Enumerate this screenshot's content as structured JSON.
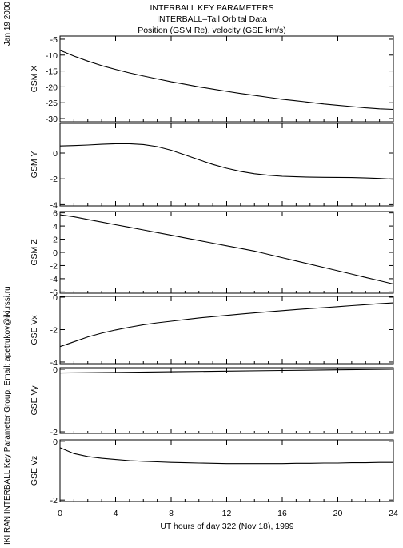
{
  "header": {
    "line1": "INTERBALL KEY PARAMETERS",
    "line2": "INTERBALL–Tail Orbital Data",
    "line3": "Position (GSM Re), velocity (GSE km/s)"
  },
  "side_date": "Jan 19 2000",
  "side_credit": "IKI RAN INTERBALL Key Parameter Group, Email: apetrukov@iki.rssi.ru",
  "chart_data": {
    "type": "line",
    "xlabel": "UT hours of day 322 (Nov 18), 1999",
    "x_ticks": [
      0,
      4,
      8,
      12,
      16,
      20,
      24
    ],
    "xlim": [
      0,
      24
    ],
    "panels": [
      {
        "ylabel": "GSM X",
        "ylim": [
          -31,
          -4
        ],
        "y_ticks": [
          -5,
          -10,
          -15,
          -20,
          -25,
          -30
        ],
        "x": [
          0,
          1,
          2,
          3,
          4,
          5,
          6,
          7,
          8,
          9,
          10,
          11,
          12,
          13,
          14,
          15,
          16,
          17,
          18,
          19,
          20,
          21,
          22,
          23,
          24
        ],
        "y": [
          -8.5,
          -10.3,
          -11.9,
          -13.3,
          -14.5,
          -15.6,
          -16.6,
          -17.5,
          -18.4,
          -19.2,
          -20.0,
          -20.7,
          -21.4,
          -22.1,
          -22.7,
          -23.3,
          -23.9,
          -24.4,
          -24.9,
          -25.4,
          -25.8,
          -26.2,
          -26.6,
          -26.9,
          -27.1
        ]
      },
      {
        "ylabel": "GSM Y",
        "ylim": [
          -4.1,
          2.3
        ],
        "y_ticks": [
          0,
          -2,
          -4
        ],
        "x": [
          0,
          1,
          2,
          3,
          4,
          5,
          6,
          7,
          8,
          9,
          10,
          11,
          12,
          13,
          14,
          15,
          16,
          17,
          18,
          19,
          20,
          21,
          22,
          23,
          24
        ],
        "y": [
          0.55,
          0.58,
          0.62,
          0.68,
          0.72,
          0.72,
          0.66,
          0.5,
          0.22,
          -0.15,
          -0.52,
          -0.88,
          -1.18,
          -1.42,
          -1.6,
          -1.72,
          -1.8,
          -1.84,
          -1.87,
          -1.88,
          -1.89,
          -1.9,
          -1.93,
          -1.97,
          -2.03
        ]
      },
      {
        "ylabel": "GSM Z",
        "ylim": [
          -6.2,
          6.2
        ],
        "y_ticks": [
          6,
          4,
          2,
          0,
          -2,
          -4,
          -6
        ],
        "x": [
          0,
          1,
          2,
          3,
          4,
          5,
          6,
          7,
          8,
          9,
          10,
          11,
          12,
          13,
          14,
          15,
          16,
          17,
          18,
          19,
          20,
          21,
          22,
          23,
          24
        ],
        "y": [
          5.7,
          5.4,
          5.0,
          4.6,
          4.2,
          3.8,
          3.4,
          3.0,
          2.6,
          2.2,
          1.8,
          1.4,
          1.0,
          0.6,
          0.2,
          -0.3,
          -0.8,
          -1.3,
          -1.8,
          -2.3,
          -2.8,
          -3.3,
          -3.8,
          -4.3,
          -4.8
        ]
      },
      {
        "ylabel": "GSE Vx",
        "ylim": [
          -4.1,
          0.05
        ],
        "y_ticks": [
          0,
          -2,
          -4
        ],
        "x": [
          0,
          1,
          2,
          3,
          4,
          5,
          6,
          7,
          8,
          9,
          10,
          11,
          12,
          13,
          14,
          15,
          16,
          17,
          18,
          19,
          20,
          21,
          22,
          23,
          24
        ],
        "y": [
          -3.05,
          -2.75,
          -2.45,
          -2.22,
          -2.02,
          -1.85,
          -1.7,
          -1.58,
          -1.48,
          -1.38,
          -1.28,
          -1.2,
          -1.12,
          -1.04,
          -0.97,
          -0.9,
          -0.83,
          -0.76,
          -0.7,
          -0.64,
          -0.58,
          -0.52,
          -0.46,
          -0.4,
          -0.35
        ]
      },
      {
        "ylabel": "GSE Vy",
        "ylim": [
          -2.05,
          0.05
        ],
        "y_ticks": [
          0,
          -2
        ],
        "x": [
          0,
          4,
          8,
          12,
          16,
          20,
          24
        ],
        "y": [
          -0.12,
          -0.1,
          -0.08,
          -0.06,
          -0.04,
          -0.02,
          0.0
        ]
      },
      {
        "ylabel": "GSE Vz",
        "ylim": [
          -2.05,
          0.05
        ],
        "y_ticks": [
          0,
          -2
        ],
        "x": [
          0,
          1,
          2,
          3,
          4,
          5,
          6,
          7,
          8,
          9,
          10,
          11,
          12,
          13,
          14,
          15,
          16,
          17,
          18,
          19,
          20,
          21,
          22,
          23,
          24
        ],
        "y": [
          -0.22,
          -0.42,
          -0.52,
          -0.58,
          -0.62,
          -0.66,
          -0.68,
          -0.7,
          -0.72,
          -0.73,
          -0.74,
          -0.75,
          -0.76,
          -0.76,
          -0.76,
          -0.76,
          -0.76,
          -0.75,
          -0.75,
          -0.74,
          -0.74,
          -0.73,
          -0.73,
          -0.72,
          -0.72
        ]
      }
    ]
  }
}
